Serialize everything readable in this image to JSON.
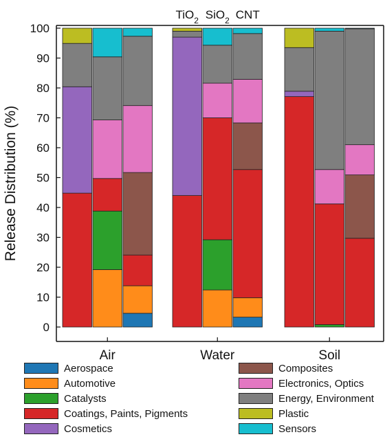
{
  "chart_data": {
    "type": "bar",
    "stacked": true,
    "ylabel": "Release Distribution (%)",
    "ylim": [
      0,
      100
    ],
    "yticks": [
      0,
      10,
      20,
      30,
      40,
      50,
      60,
      70,
      80,
      90,
      100
    ],
    "grid": false,
    "panels": [
      {
        "label": "Air",
        "bars": [
          {
            "material": "TiO2",
            "values": {
              "Aerospace": 0,
              "Automotive": 0,
              "Catalysts": 0,
              "Coatings, Paints, Pigments": 44.8,
              "Cosmetics": 35.6,
              "Composites": 0,
              "Electronics, Optics": 0,
              "Energy, Environment": 14.5,
              "Plastic": 5.1,
              "Sensors": 0
            }
          },
          {
            "material": "SiO2",
            "values": {
              "Aerospace": 0,
              "Automotive": 19.2,
              "Catalysts": 19.6,
              "Coatings, Paints, Pigments": 10.9,
              "Cosmetics": 0,
              "Composites": 0,
              "Electronics, Optics": 19.6,
              "Energy, Environment": 21.1,
              "Plastic": 0,
              "Sensors": 9.6
            }
          },
          {
            "material": "CNT",
            "values": {
              "Aerospace": 4.6,
              "Automotive": 9.2,
              "Catalysts": 0,
              "Coatings, Paints, Pigments": 10.3,
              "Cosmetics": 0,
              "Composites": 27.6,
              "Electronics, Optics": 22.4,
              "Energy, Environment": 23.2,
              "Plastic": 0,
              "Sensors": 2.7
            }
          }
        ]
      },
      {
        "label": "Water",
        "bars": [
          {
            "material": "TiO2",
            "values": {
              "Aerospace": 0,
              "Automotive": 0,
              "Catalysts": 0,
              "Coatings, Paints, Pigments": 44.0,
              "Cosmetics": 53.0,
              "Composites": 0,
              "Electronics, Optics": 0,
              "Energy, Environment": 2.0,
              "Plastic": 1.0,
              "Sensors": 0
            }
          },
          {
            "material": "SiO2",
            "values": {
              "Aerospace": 0,
              "Automotive": 12.4,
              "Catalysts": 16.8,
              "Coatings, Paints, Pigments": 40.8,
              "Cosmetics": 0,
              "Composites": 0,
              "Electronics, Optics": 11.6,
              "Energy, Environment": 12.7,
              "Plastic": 0,
              "Sensors": 5.7
            }
          },
          {
            "material": "CNT",
            "values": {
              "Aerospace": 3.3,
              "Automotive": 6.5,
              "Catalysts": 0,
              "Coatings, Paints, Pigments": 42.9,
              "Cosmetics": 0,
              "Composites": 15.6,
              "Electronics, Optics": 14.6,
              "Energy, Environment": 15.3,
              "Plastic": 0,
              "Sensors": 1.8
            }
          }
        ]
      },
      {
        "label": "Soil",
        "bars": [
          {
            "material": "TiO2",
            "values": {
              "Aerospace": 0,
              "Automotive": 0,
              "Catalysts": 0,
              "Coatings, Paints, Pigments": 77.1,
              "Cosmetics": 1.8,
              "Composites": 0,
              "Electronics, Optics": 0,
              "Energy, Environment": 14.6,
              "Plastic": 6.5,
              "Sensors": 0
            }
          },
          {
            "material": "SiO2",
            "values": {
              "Aerospace": 0,
              "Automotive": 0,
              "Catalysts": 0.8,
              "Coatings, Paints, Pigments": 40.4,
              "Cosmetics": 0,
              "Composites": 0,
              "Electronics, Optics": 11.5,
              "Energy, Environment": 46.3,
              "Plastic": 0,
              "Sensors": 1.0
            }
          },
          {
            "material": "CNT",
            "values": {
              "Aerospace": 0,
              "Automotive": 0,
              "Catalysts": 0,
              "Coatings, Paints, Pigments": 29.7,
              "Cosmetics": 0,
              "Composites": 21.2,
              "Electronics, Optics": 10.1,
              "Energy, Environment": 38.8,
              "Plastic": 0,
              "Sensors": 0.2
            }
          }
        ]
      }
    ],
    "stack_order": [
      "Aerospace",
      "Automotive",
      "Catalysts",
      "Coatings, Paints, Pigments",
      "Cosmetics",
      "Composites",
      "Electronics, Optics",
      "Energy, Environment",
      "Plastic",
      "Sensors"
    ],
    "colors": {
      "Aerospace": "#1f77b4",
      "Automotive": "#ff8c1a",
      "Catalysts": "#2ca02c",
      "Coatings, Paints, Pigments": "#d62728",
      "Cosmetics": "#9467bd",
      "Composites": "#8c564b",
      "Electronics, Optics": "#e377c2",
      "Energy, Environment": "#7f7f7f",
      "Plastic": "#bcbd22",
      "Sensors": "#17becf"
    },
    "legend": {
      "placement": "bottom",
      "columns": [
        [
          "Aerospace",
          "Automotive",
          "Catalysts",
          "Coatings, Paints, Pigments",
          "Cosmetics"
        ],
        [
          "Composites",
          "Electronics, Optics",
          "Energy, Environment",
          "Plastic",
          "Sensors"
        ]
      ]
    }
  }
}
